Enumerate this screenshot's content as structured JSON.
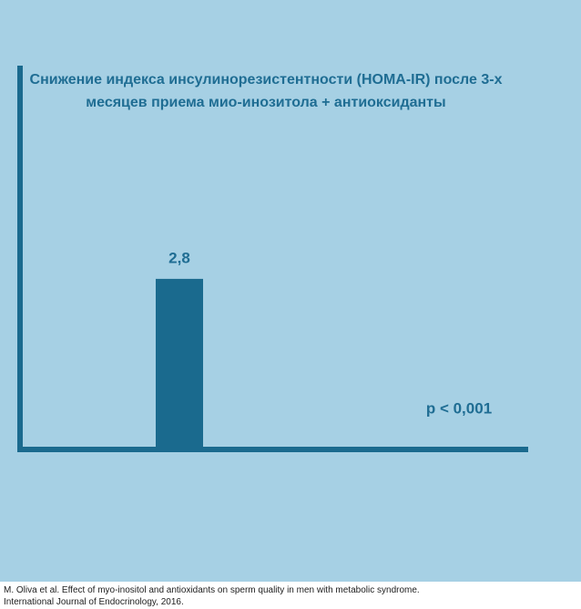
{
  "chart_data": {
    "type": "bar",
    "title": [
      "Снижение индекса инсулинорезистентности (HOMA-IR) после 3-х",
      "месяцев приема мио-инозитола + антиоксиданты"
    ],
    "categories": [
      null
    ],
    "values": [
      2.8
    ],
    "value_labels": [
      "2,8"
    ],
    "color": "#1a6a8e",
    "ylim": [
      0,
      6.3
    ],
    "annotation": "p < 0,001"
  },
  "footer": {
    "lines": [
      "M. Oliva et al. Effect of myo-inositol and antioxidants on sperm quality in men with metabolic syndrome.",
      "International Journal of Endocrinology, 2016."
    ]
  }
}
